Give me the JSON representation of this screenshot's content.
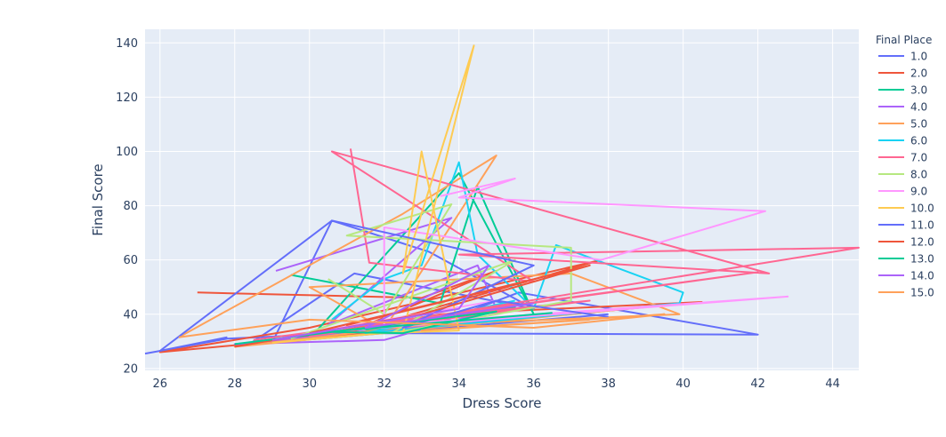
{
  "chart_data": {
    "type": "line",
    "xlabel": "Dress Score",
    "ylabel": "Final Score",
    "xlim": [
      25.6,
      44.7
    ],
    "ylim": [
      19.3,
      145
    ],
    "x_ticks": [
      26,
      28,
      30,
      32,
      34,
      36,
      38,
      40,
      42,
      44
    ],
    "y_ticks": [
      20,
      40,
      60,
      80,
      100,
      120,
      140
    ],
    "grid": true,
    "legend_title": "Final Place",
    "legend_position": "right",
    "series": [
      {
        "name": "1.0",
        "color": "#636efa",
        "x": [
          25.6,
          27.8,
          31.0,
          33.5,
          35.6,
          42.0,
          32.0,
          29.0,
          30.6,
          33.2,
          36.0,
          31.2,
          28.5,
          34.5,
          38.0
        ],
        "y": [
          25.5,
          31.0,
          33.0,
          37.0,
          48.0,
          32.5,
          33.0,
          29.5,
          74.5,
          63.0,
          42.0,
          55.0,
          30.0,
          36.0,
          40.0
        ]
      },
      {
        "name": "2.0",
        "color": "#EF553B",
        "x": [
          27.0,
          33.0,
          35.0,
          31.0,
          37.8,
          30.0,
          26.0,
          40.5,
          33.5,
          29.5
        ],
        "y": [
          48.0,
          46.0,
          56.0,
          33.0,
          60.0,
          35.0,
          26.0,
          44.5,
          40.0,
          31.0
        ]
      },
      {
        "name": "3.0",
        "color": "#00cc96",
        "x": [
          29.5,
          33.5,
          34.5,
          36.0,
          34.0,
          30.0,
          32.5,
          35.5,
          31.5
        ],
        "y": [
          54.5,
          44.0,
          87.0,
          40.0,
          92.0,
          31.0,
          38.0,
          42.5,
          34.0
        ]
      },
      {
        "name": "4.0",
        "color": "#ab63fa",
        "x": [
          29.1,
          33.8,
          30.5,
          34.5,
          35.0,
          32.0,
          28.0,
          36.5
        ],
        "y": [
          56.0,
          75.5,
          36.0,
          58.0,
          42.0,
          30.5,
          29.0,
          40.0
        ]
      },
      {
        "name": "5.0",
        "color": "#FFA15A",
        "x": [
          26.5,
          32.5,
          35.0,
          32.0,
          30.0,
          37.0,
          39.9,
          33.0,
          28.0,
          38.5
        ],
        "y": [
          31.5,
          77.0,
          98.5,
          34.5,
          50.0,
          55.0,
          40.0,
          36.0,
          28.0,
          42.0
        ]
      },
      {
        "name": "6.0",
        "color": "#19d3f3",
        "x": [
          30.6,
          32.0,
          33.0,
          34.0,
          34.5,
          36.0,
          36.6,
          40.0,
          39.9,
          31.5,
          35.5
        ],
        "y": [
          38.0,
          53.0,
          58.0,
          96.0,
          62.0,
          42.0,
          65.5,
          48.0,
          44.0,
          33.0,
          45.0
        ]
      },
      {
        "name": "7.0",
        "color": "#FF6692",
        "x": [
          31.1,
          31.6,
          36.0,
          30.6,
          42.3,
          34.0,
          44.7,
          30.0,
          37.5,
          33.0,
          42.0,
          28.5
        ],
        "y": [
          101.0,
          59.0,
          52.0,
          100.0,
          55.0,
          62.0,
          64.5,
          32.0,
          45.0,
          38.5,
          55.5,
          30.5
        ]
      },
      {
        "name": "8.0",
        "color": "#B6E880",
        "x": [
          30.5,
          32.0,
          33.8,
          31.0,
          37.0,
          37.0,
          32.2,
          35.5,
          29.5
        ],
        "y": [
          53.0,
          40.0,
          80.5,
          69.0,
          64.5,
          45.0,
          33.0,
          60.0,
          31.0
        ]
      },
      {
        "name": "9.0",
        "color": "#FF97FF",
        "x": [
          33.5,
          35.5,
          34.0,
          42.2,
          37.8,
          32.0,
          32.0,
          42.8,
          30.0,
          35.0
        ],
        "y": [
          83.5,
          90.0,
          83.0,
          78.0,
          60.0,
          72.0,
          36.0,
          46.5,
          33.0,
          45.0
        ]
      },
      {
        "name": "10.0",
        "color": "#FECB52",
        "x": [
          32.5,
          34.4,
          32.5,
          33.0,
          34.0,
          32.0,
          29.0
        ],
        "y": [
          33.0,
          139.0,
          55.0,
          100.0,
          34.0,
          33.0,
          29.5
        ]
      },
      {
        "name": "11.0",
        "color": "#636efa",
        "x": [
          27.8,
          26.0,
          30.6,
          36.0,
          32.5,
          35.0,
          38.0
        ],
        "y": [
          31.5,
          26.5,
          74.5,
          58.0,
          35.0,
          45.0,
          39.0
        ]
      },
      {
        "name": "12.0",
        "color": "#EF553B",
        "x": [
          28.0,
          33.0,
          37.5,
          31.0,
          35.8,
          30.0
        ],
        "y": [
          28.0,
          40.0,
          58.0,
          36.0,
          52.0,
          33.0
        ]
      },
      {
        "name": "13.0",
        "color": "#00cc96",
        "x": [
          28.0,
          35.0,
          32.5,
          30.5,
          36.5
        ],
        "y": [
          29.0,
          41.0,
          33.0,
          33.5,
          40.5
        ]
      },
      {
        "name": "14.0",
        "color": "#ab63fa",
        "x": [
          29.0,
          34.0,
          34.8,
          31.5,
          36.0
        ],
        "y": [
          30.5,
          42.0,
          58.0,
          35.0,
          44.0
        ]
      },
      {
        "name": "15.0",
        "color": "#FFA15A",
        "x": [
          26.5,
          30.0,
          36.0,
          39.5,
          33.0,
          37.5
        ],
        "y": [
          31.5,
          38.0,
          35.0,
          40.0,
          34.0,
          38.0
        ]
      }
    ]
  }
}
